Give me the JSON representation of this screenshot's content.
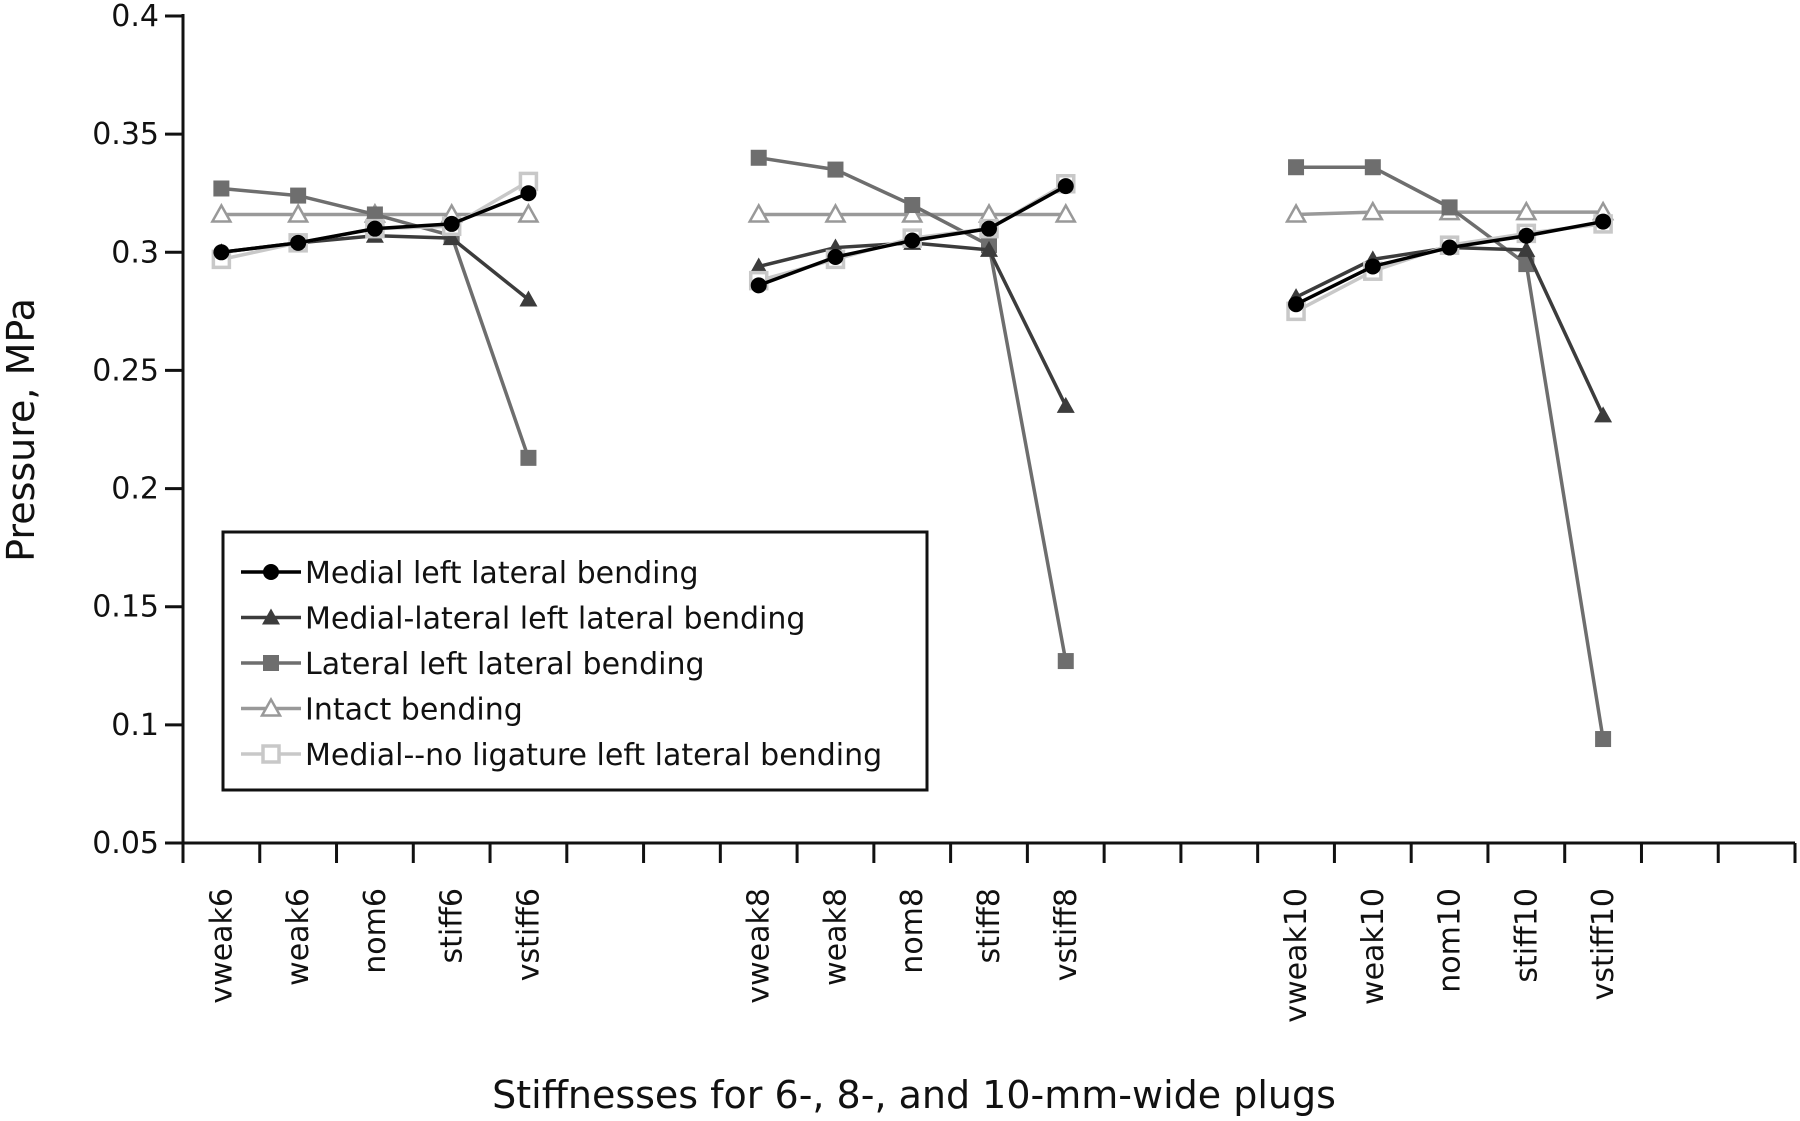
{
  "chart_data": {
    "type": "line",
    "xlabel": "Stiffnesses for 6-, 8-, and 10-mm-wide plugs",
    "ylabel": "Pressure, MPa",
    "ylim": [
      0.05,
      0.4
    ],
    "yticks": [
      "0.05",
      "0.1",
      "0.15",
      "0.2",
      "0.25",
      "0.3",
      "0.35",
      "0.4"
    ],
    "categories": [
      "vweak6",
      "weak6",
      "nom6",
      "stiff6",
      "vstiff6",
      "",
      "",
      "vweak8",
      "weak8",
      "nom8",
      "stiff8",
      "vstiff8",
      "",
      "",
      "vweak10",
      "weak10",
      "nom10",
      "stiff10",
      "vstiff10",
      "",
      ""
    ],
    "grid": false,
    "legend_position": "lower-left",
    "series": [
      {
        "name": "Medial left lateral bending",
        "color": "#000000",
        "marker": "circle-filled",
        "values": [
          0.3,
          0.304,
          0.31,
          0.312,
          0.325,
          null,
          null,
          0.286,
          0.298,
          0.305,
          0.31,
          0.328,
          null,
          null,
          0.278,
          0.294,
          0.302,
          0.307,
          0.313,
          null,
          null
        ]
      },
      {
        "name": "Medial-lateral left lateral bending",
        "color": "#3c3c3c",
        "marker": "triangle-filled",
        "values": [
          0.3,
          0.304,
          0.307,
          0.306,
          0.28,
          null,
          null,
          0.294,
          0.302,
          0.304,
          0.301,
          0.235,
          null,
          null,
          0.281,
          0.297,
          0.302,
          0.301,
          0.231,
          null,
          null
        ]
      },
      {
        "name": "Lateral left lateral bending",
        "color": "#6e6e6e",
        "marker": "square-filled",
        "values": [
          0.327,
          0.324,
          0.316,
          0.307,
          0.213,
          null,
          null,
          0.34,
          0.335,
          0.32,
          0.303,
          0.127,
          null,
          null,
          0.336,
          0.336,
          0.319,
          0.295,
          0.094,
          null,
          null
        ]
      },
      {
        "name": "Intact bending",
        "color": "#999999",
        "marker": "triangle-open",
        "values": [
          0.316,
          0.316,
          0.316,
          0.316,
          0.316,
          null,
          null,
          0.316,
          0.316,
          0.316,
          0.316,
          0.316,
          null,
          null,
          0.316,
          0.317,
          0.317,
          0.317,
          0.317,
          null,
          null
        ]
      },
      {
        "name": "Medial--no ligature left lateral bending",
        "color": "#c8c8c8",
        "marker": "square-open",
        "values": [
          0.297,
          0.304,
          0.31,
          0.311,
          0.33,
          null,
          null,
          0.288,
          0.297,
          0.306,
          0.31,
          0.329,
          null,
          null,
          0.275,
          0.292,
          0.303,
          0.308,
          0.312,
          null,
          null
        ]
      }
    ]
  }
}
